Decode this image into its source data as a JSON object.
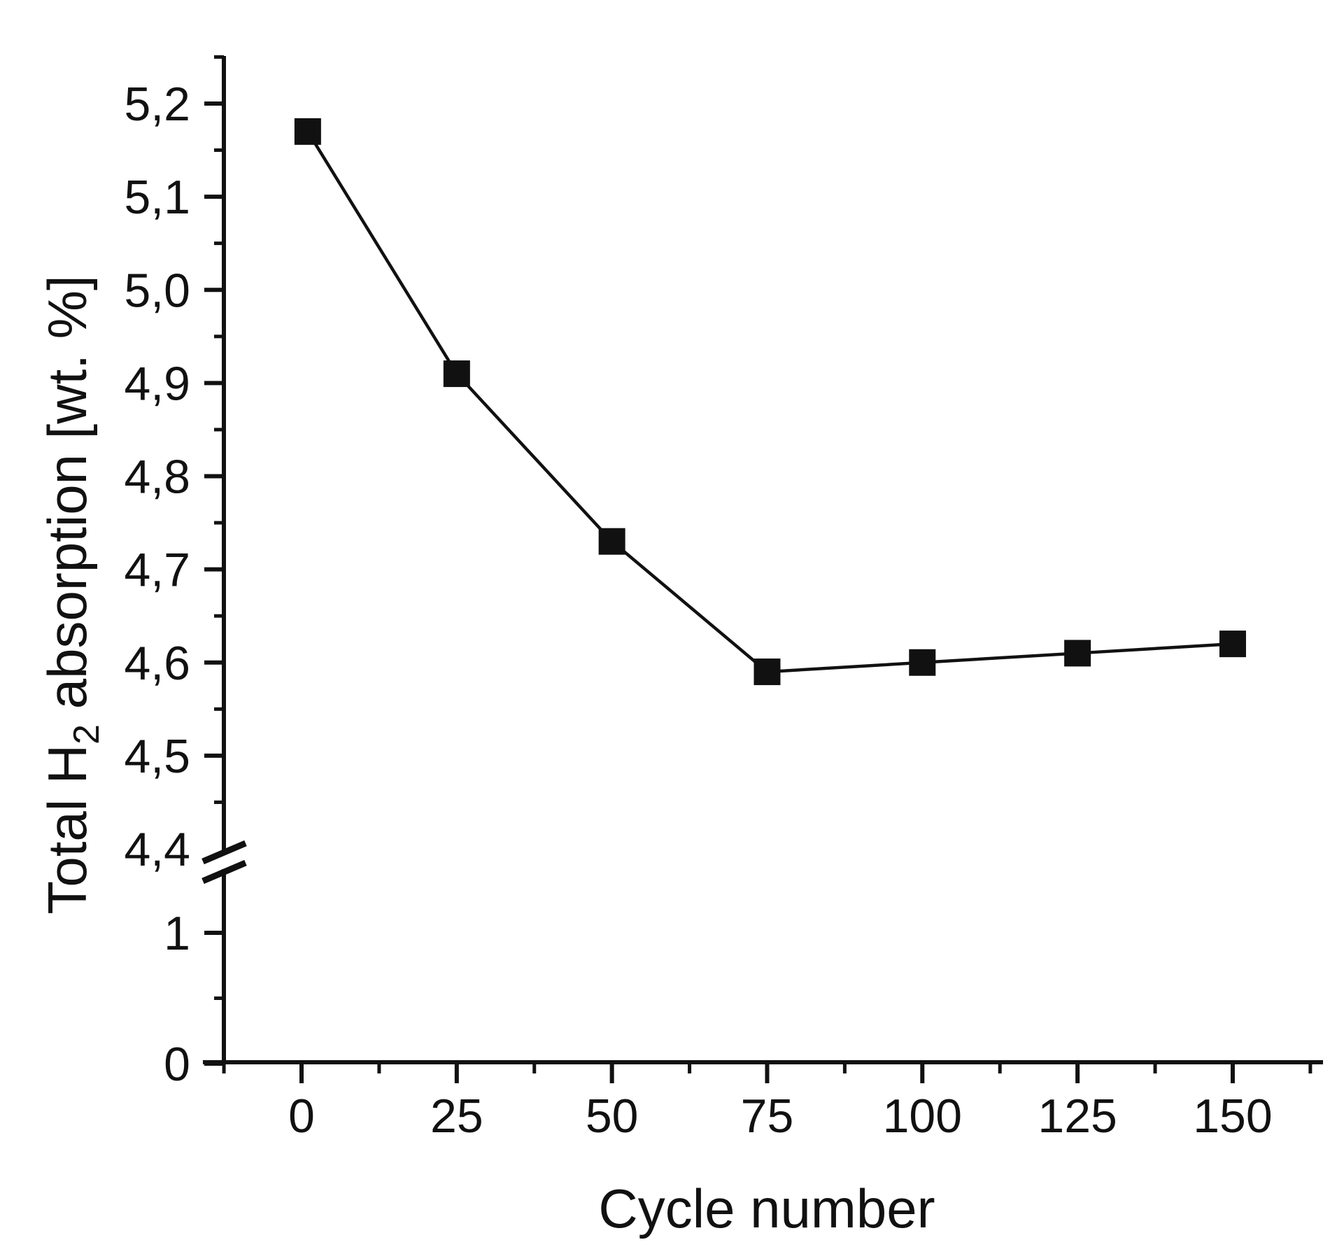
{
  "figure": {
    "background": "#ffffff",
    "ink": "#111111"
  },
  "chart_data": {
    "type": "line",
    "title": "",
    "xlabel": "Cycle number",
    "ylabel": "Total H₂ absorption [wt. %]",
    "ylabel_parts": {
      "pre": "Total H",
      "sub": "2",
      "post": " absorption [wt. %]"
    },
    "x": [
      1,
      25,
      50,
      75,
      100,
      125,
      150
    ],
    "series": [
      {
        "name": "Total H₂ absorption",
        "values": [
          5.17,
          4.91,
          4.73,
          4.59,
          4.6,
          4.61,
          4.62
        ],
        "marker": "filled-square",
        "color": "#111111"
      }
    ],
    "x_axis": {
      "major_ticks": [
        0,
        25,
        50,
        75,
        100,
        125,
        150
      ],
      "major_tick_labels": [
        "0",
        "25",
        "50",
        "75",
        "100",
        "125",
        "150"
      ],
      "minor_ticks": [
        -12.5,
        12.5,
        37.5,
        62.5,
        87.5,
        112.5,
        137.5,
        162.5
      ]
    },
    "y_axis": {
      "decimal_separator": ",",
      "broken_axis": true,
      "upper_segment": {
        "major_ticks": [
          4.4,
          4.5,
          4.6,
          4.7,
          4.8,
          4.9,
          5.0,
          5.1,
          5.2
        ],
        "major_tick_labels": [
          "4,4",
          "4,5",
          "4,6",
          "4,7",
          "4,8",
          "4,9",
          "5,0",
          "5,1",
          "5,2"
        ],
        "minor_ticks": [
          4.45,
          4.55,
          4.65,
          4.75,
          4.85,
          4.95,
          5.05,
          5.15,
          5.25
        ]
      },
      "lower_segment": {
        "major_ticks": [
          0,
          1
        ],
        "major_tick_labels": [
          "0",
          "1"
        ],
        "minor_ticks": [
          0.5
        ]
      }
    },
    "grid": false,
    "legend": false
  }
}
